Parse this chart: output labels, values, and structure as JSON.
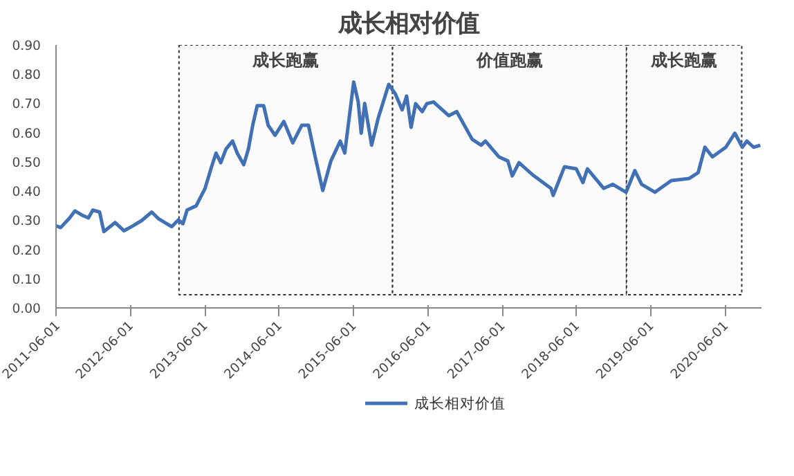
{
  "chart_data": {
    "type": "line",
    "title": "成长相对价值",
    "xlim": [
      "2011-06-01",
      "2020-11-25"
    ],
    "xticks": [
      "2011-06-01",
      "2012-06-01",
      "2013-06-01",
      "2014-06-01",
      "2015-06-01",
      "2016-06-01",
      "2017-06-01",
      "2018-06-01",
      "2019-06-01",
      "2020-06-01"
    ],
    "ylim": [
      0,
      0.9
    ],
    "yticks": [
      {
        "value": 0,
        "label": "0.00"
      },
      {
        "value": 0.1,
        "label": "0.10"
      },
      {
        "value": 0.2,
        "label": "0.20"
      },
      {
        "value": 0.3,
        "label": "0.30"
      },
      {
        "value": 0.4,
        "label": "0.40"
      },
      {
        "value": 0.5,
        "label": "0.50"
      },
      {
        "value": 0.6,
        "label": "0.60"
      },
      {
        "value": 0.7,
        "label": "0.70"
      },
      {
        "value": 0.8,
        "label": "0.80"
      },
      {
        "value": 0.9,
        "label": "0.90"
      }
    ],
    "grid": false,
    "legend": "bottom",
    "bands": [
      {
        "axis": "x",
        "from": "2013-01-25",
        "to": "2015-12-10",
        "label": "成长跑赢"
      },
      {
        "axis": "x",
        "from": "2015-12-10",
        "to": "2019-02-01",
        "label": "价值跑赢"
      },
      {
        "axis": "x",
        "from": "2019-02-01",
        "to": "2020-08-20",
        "label": "成长跑赢"
      }
    ],
    "series": [
      {
        "name": "成长相对价值",
        "color": "#4170b4",
        "x": [
          "2011-06-01",
          "2011-06-24",
          "2011-08-07",
          "2011-09-02",
          "2011-10-05",
          "2011-11-07",
          "2011-11-29",
          "2012-01-01",
          "2012-01-22",
          "2012-03-17",
          "2012-04-30",
          "2012-06-13",
          "2012-07-26",
          "2012-09-13",
          "2012-10-15",
          "2012-12-20",
          "2013-01-22",
          "2013-02-13",
          "2013-03-06",
          "2013-04-19",
          "2013-06-02",
          "2013-07-04",
          "2013-07-26",
          "2013-08-18",
          "2013-09-13",
          "2013-10-15",
          "2013-11-07",
          "2013-12-09",
          "2014-01-01",
          "2014-01-22",
          "2014-02-13",
          "2014-03-17",
          "2014-04-08",
          "2014-05-12",
          "2014-06-24",
          "2014-08-07",
          "2014-09-20",
          "2014-10-23",
          "2014-11-25",
          "2015-01-01",
          "2015-02-10",
          "2015-03-28",
          "2015-04-19",
          "2015-06-02",
          "2015-06-24",
          "2015-07-09",
          "2015-07-26",
          "2015-08-29",
          "2015-10-01",
          "2015-11-21",
          "2015-12-24",
          "2016-01-26",
          "2016-02-17",
          "2016-03-10",
          "2016-04-01",
          "2016-05-04",
          "2016-05-26",
          "2016-06-28",
          "2016-09-11",
          "2016-10-20",
          "2017-01-04",
          "2017-02-17",
          "2017-03-10",
          "2017-05-15",
          "2017-06-28",
          "2017-07-20",
          "2017-08-22",
          "2017-10-27",
          "2018-01-26",
          "2018-02-06",
          "2018-04-02",
          "2018-05-30",
          "2018-07-02",
          "2018-07-24",
          "2018-10-12",
          "2018-11-25",
          "2019-01-30",
          "2019-03-14",
          "2019-04-16",
          "2019-06-21",
          "2019-09-09",
          "2019-12-06",
          "2020-01-19",
          "2020-02-21",
          "2020-03-29",
          "2020-06-03",
          "2020-07-17",
          "2020-08-23",
          "2020-09-14",
          "2020-10-17",
          "2020-11-19"
        ],
        "values": [
          0.281,
          0.275,
          0.308,
          0.332,
          0.318,
          0.308,
          0.335,
          0.328,
          0.261,
          0.292,
          0.264,
          0.281,
          0.299,
          0.328,
          0.306,
          0.278,
          0.301,
          0.288,
          0.335,
          0.349,
          0.409,
          0.483,
          0.53,
          0.497,
          0.544,
          0.571,
          0.53,
          0.49,
          0.544,
          0.625,
          0.692,
          0.692,
          0.625,
          0.591,
          0.638,
          0.565,
          0.625,
          0.625,
          0.517,
          0.402,
          0.503,
          0.571,
          0.53,
          0.773,
          0.706,
          0.598,
          0.7,
          0.557,
          0.651,
          0.765,
          0.732,
          0.678,
          0.725,
          0.618,
          0.699,
          0.672,
          0.699,
          0.705,
          0.658,
          0.672,
          0.577,
          0.557,
          0.571,
          0.517,
          0.503,
          0.452,
          0.497,
          0.456,
          0.409,
          0.385,
          0.483,
          0.476,
          0.429,
          0.476,
          0.409,
          0.423,
          0.396,
          0.47,
          0.423,
          0.396,
          0.436,
          0.443,
          0.463,
          0.55,
          0.517,
          0.55,
          0.598,
          0.55,
          0.571,
          0.55,
          0.557
        ]
      }
    ]
  }
}
